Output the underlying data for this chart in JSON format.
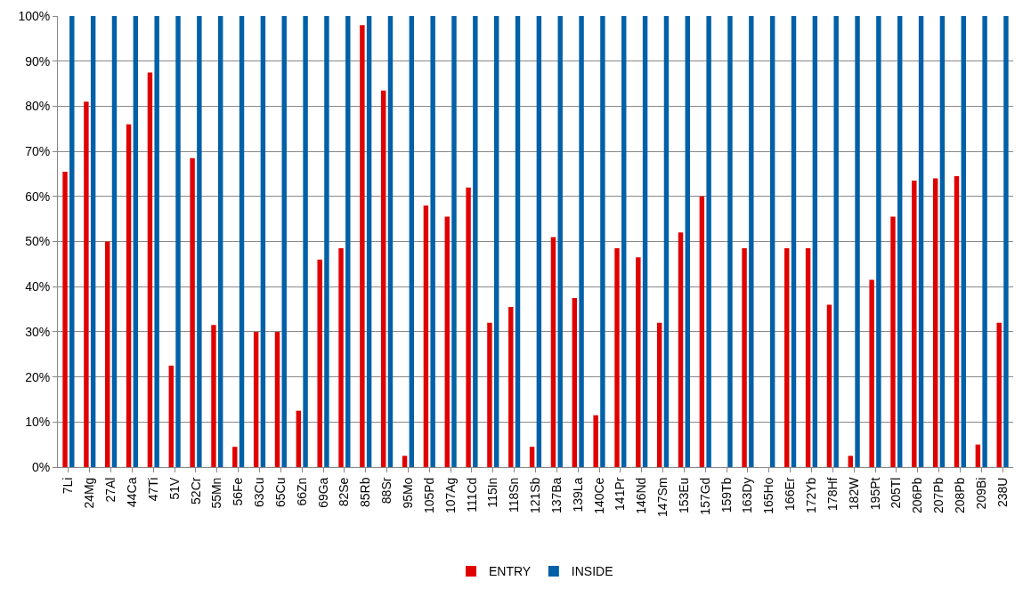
{
  "chart_data": {
    "type": "bar",
    "categories": [
      "7Li",
      "24Mg",
      "27Al",
      "44Ca",
      "47Ti",
      "51V",
      "52Cr",
      "55Mn",
      "56Fe",
      "63Cu",
      "65Cu",
      "66Zn",
      "69Ga",
      "82Se",
      "85Rb",
      "88Sr",
      "95Mo",
      "105Pd",
      "107Ag",
      "111Cd",
      "115In",
      "118Sn",
      "121Sb",
      "137Ba",
      "139La",
      "140Ce",
      "141Pr",
      "146Nd",
      "147Sm",
      "153Eu",
      "157Gd",
      "159Tb",
      "163Dy",
      "165Ho",
      "166Er",
      "172Yb",
      "178Hf",
      "182W",
      "195Pt",
      "205Tl",
      "206Pb",
      "207Pb",
      "208Pb",
      "209Bi",
      "238U"
    ],
    "series": [
      {
        "name": "ENTRY",
        "color": "#e00000",
        "values": [
          65.5,
          81,
          50,
          76,
          87.5,
          22.5,
          68.5,
          31.5,
          4.5,
          30,
          30,
          12.5,
          46,
          48.5,
          98,
          83.5,
          2.5,
          58,
          55.5,
          62,
          32,
          35.5,
          4.5,
          51,
          37.5,
          11.5,
          48.5,
          46.5,
          32,
          52,
          60,
          0,
          48.5,
          0,
          48.5,
          48.5,
          36,
          2.5,
          41.5,
          55.5,
          63.5,
          64,
          64.5,
          5,
          32
        ]
      },
      {
        "name": "INSIDE",
        "color": "#0060a8",
        "values": [
          100,
          100,
          100,
          100,
          100,
          100,
          100,
          100,
          100,
          100,
          100,
          100,
          100,
          100,
          100,
          100,
          100,
          100,
          100,
          100,
          100,
          100,
          100,
          100,
          100,
          100,
          100,
          100,
          100,
          100,
          100,
          100,
          100,
          100,
          100,
          100,
          100,
          100,
          100,
          100,
          100,
          100,
          100,
          100,
          100
        ]
      }
    ],
    "ylim": [
      0,
      100
    ],
    "yticks": [
      {
        "value": 0,
        "label": "0%"
      },
      {
        "value": 10,
        "label": "10%"
      },
      {
        "value": 20,
        "label": "20%"
      },
      {
        "value": 30,
        "label": "30%"
      },
      {
        "value": 40,
        "label": "40%"
      },
      {
        "value": 50,
        "label": "50%"
      },
      {
        "value": 60,
        "label": "60%"
      },
      {
        "value": 70,
        "label": "70%"
      },
      {
        "value": 80,
        "label": "80%"
      },
      {
        "value": 90,
        "label": "90%"
      },
      {
        "value": 100,
        "label": "100%"
      }
    ],
    "grid": "y",
    "legend": "bottom"
  }
}
